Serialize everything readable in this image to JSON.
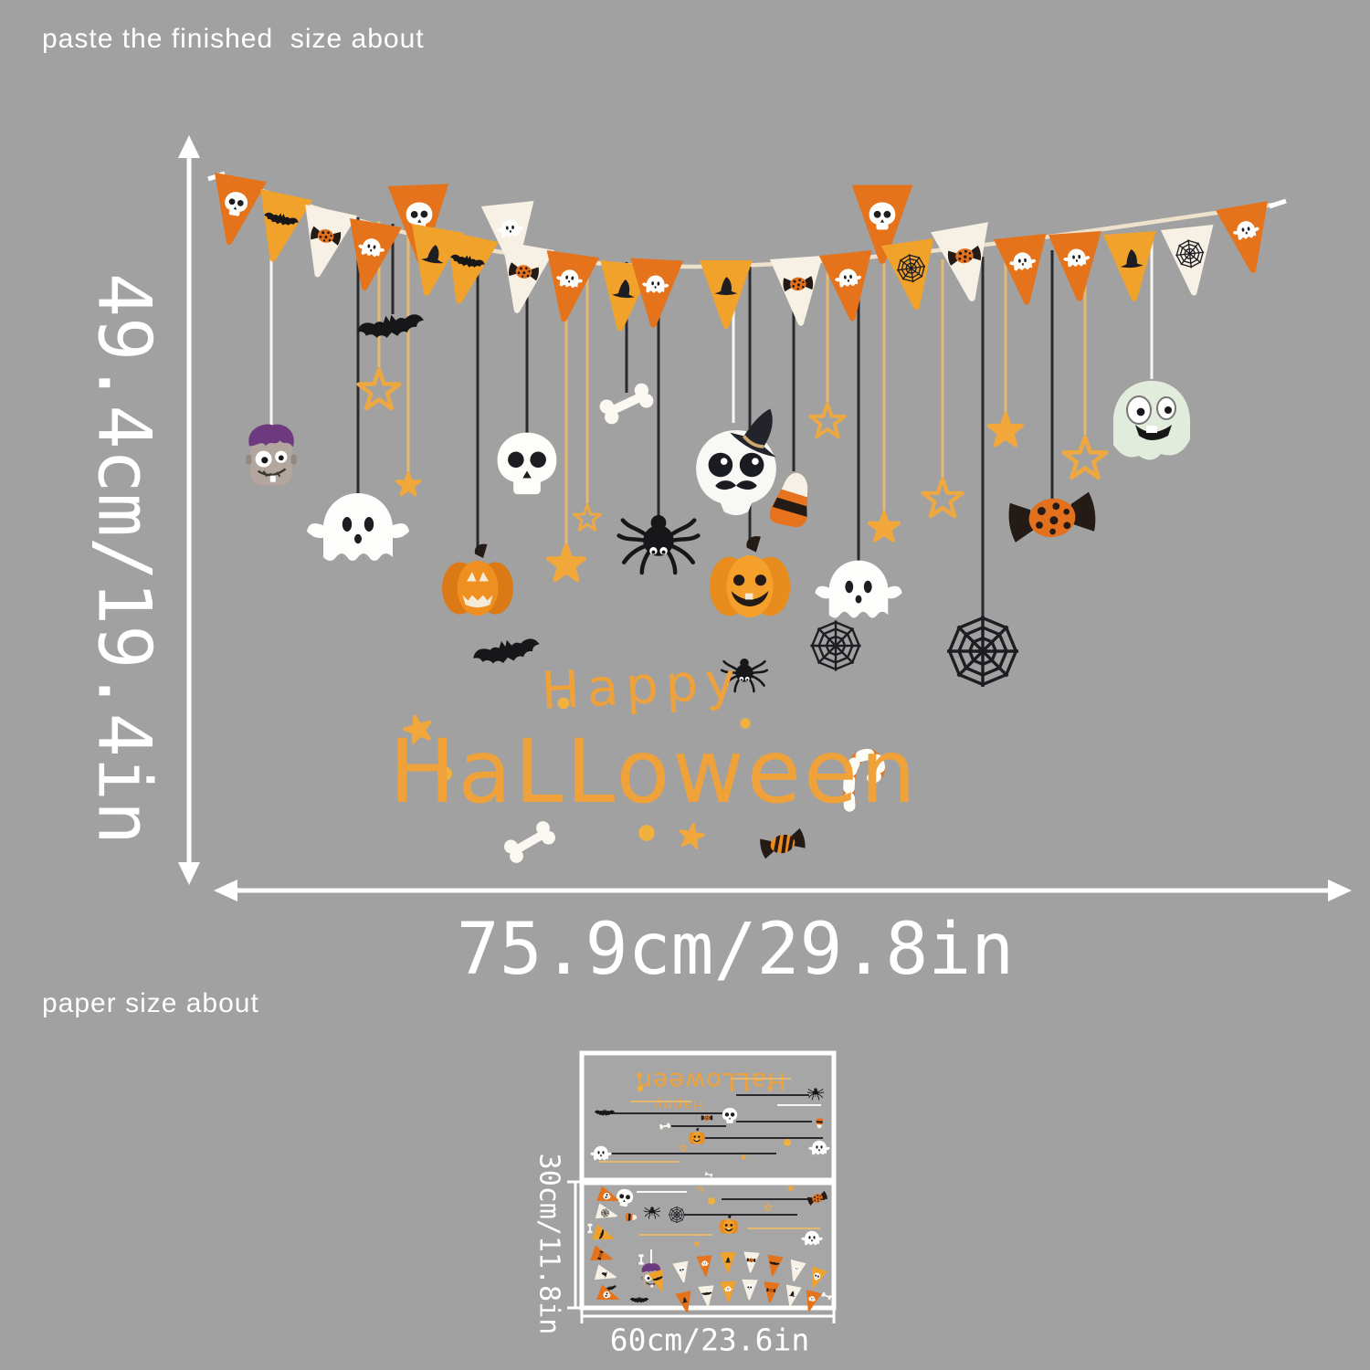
{
  "page": {
    "background_color": "#a1a1a1",
    "top_note": "paste the finished  size about",
    "bottom_note": "paper size about"
  },
  "finished_size": {
    "height_label": "49.4cm/19.4in",
    "width_label": "75.9cm/29.8in"
  },
  "paper_size": {
    "height_label": "30cm/11.8in",
    "width_label": "60cm/23.6in"
  },
  "greeting": {
    "line1": "Happy",
    "line2": "HaLLoween",
    "color": "#f0a23a"
  },
  "colors": {
    "flag_orange": "#e4731c",
    "flag_amber": "#f0a22b",
    "flag_cream": "#f6f1e4",
    "string_black": "#2a2a2e",
    "string_tan": "#e5b96f",
    "string_white": "#f7f7f5",
    "banner_cord": "#efe2cc",
    "star_gold": "#f2a73a",
    "arrow_white": "#ffffff",
    "sheet_border": "#ffffff"
  },
  "banner_flags": [
    {
      "color": "orange",
      "icon": "skull-icon"
    },
    {
      "color": "amber",
      "icon": "bat-icon"
    },
    {
      "color": "cream",
      "icon": "candy-icon"
    },
    {
      "color": "orange",
      "icon": "ghost-icon"
    },
    {
      "color": "orange",
      "icon": "skull-icon"
    },
    {
      "color": "amber",
      "icon": "witch-hat-icon"
    },
    {
      "color": "amber",
      "icon": "bat-icon"
    },
    {
      "color": "cream",
      "icon": "ghost-icon"
    },
    {
      "color": "cream",
      "icon": "candy-icon"
    },
    {
      "color": "orange",
      "icon": "ghost-icon"
    },
    {
      "color": "amber",
      "icon": "witch-hat-icon"
    },
    {
      "color": "orange",
      "icon": "ghost-icon"
    },
    {
      "color": "amber",
      "icon": "witch-hat-icon"
    },
    {
      "color": "cream",
      "icon": "candy-icon"
    },
    {
      "color": "orange",
      "icon": "ghost-icon"
    },
    {
      "color": "orange",
      "icon": "skull-icon"
    },
    {
      "color": "amber",
      "icon": "spiderweb-icon"
    },
    {
      "color": "cream",
      "icon": "candy-icon"
    },
    {
      "color": "orange",
      "icon": "ghost-icon"
    },
    {
      "color": "orange",
      "icon": "ghost-icon"
    },
    {
      "color": "amber",
      "icon": "witch-hat-icon"
    },
    {
      "color": "cream",
      "icon": "spiderweb-icon"
    },
    {
      "color": "orange",
      "icon": "ghost-icon"
    }
  ],
  "hanging_items": [
    {
      "icon": "frankenstein-icon",
      "string": "white"
    },
    {
      "icon": "bat-icon",
      "string": "black"
    },
    {
      "icon": "star-outline-icon",
      "string": "tan"
    },
    {
      "icon": "star-icon",
      "string": "tan"
    },
    {
      "icon": "ghost-icon",
      "string": "black"
    },
    {
      "icon": "skull-icon",
      "string": "black"
    },
    {
      "icon": "pumpkin-icon",
      "string": "black"
    },
    {
      "icon": "star-outline-icon",
      "string": "tan"
    },
    {
      "icon": "star-icon",
      "string": "tan"
    },
    {
      "icon": "bone-icon",
      "string": "black"
    },
    {
      "icon": "spider-icon",
      "string": "black"
    },
    {
      "icon": "skull-witch-hat-icon",
      "string": "white"
    },
    {
      "icon": "candy-corn-icon",
      "string": "black"
    },
    {
      "icon": "pumpkin-bright-icon",
      "string": "black"
    },
    {
      "icon": "ghost-icon",
      "string": "black"
    },
    {
      "icon": "star-outline-icon",
      "string": "tan"
    },
    {
      "icon": "star-icon",
      "string": "tan"
    },
    {
      "icon": "star-outline-icon",
      "string": "tan"
    },
    {
      "icon": "spiderweb-icon",
      "string": "black"
    },
    {
      "icon": "star-icon",
      "string": "tan"
    },
    {
      "icon": "star-outline-icon",
      "string": "tan"
    },
    {
      "icon": "candy-icon",
      "string": "black"
    },
    {
      "icon": "ghost-green-icon",
      "string": "white"
    }
  ],
  "scatter_items": [
    "bat-icon",
    "spider-icon",
    "spiderweb-icon",
    "star-icon",
    "dot-icon",
    "dot-icon",
    "dot-icon",
    "bone-icon",
    "dot-icon",
    "star-icon",
    "candy-striped-icon",
    "candy-cane-icon"
  ],
  "paper_sheets": {
    "top_icons": [
      "bat-icon",
      "bone-icon",
      "skull-icon",
      "candy-icon",
      "pumpkin-bright-icon",
      "spider-icon",
      "candy-corn-icon",
      "ghost-icon",
      "ghost-icon",
      "bone-icon",
      "star-icon",
      "star-outline-icon",
      "star-icon",
      "star-outline-icon",
      "dot-icon",
      "dot-icon"
    ],
    "bottom_icons": [
      "skull-icon",
      "candy-corn-icon",
      "spider-icon",
      "spiderweb-icon",
      "pumpkin-bright-icon",
      "candy-icon",
      "star-icon",
      "star-outline-icon",
      "ghost-icon",
      "frankenstein-icon",
      "bat-icon",
      "bat-icon",
      "bone-icon",
      "bone-icon",
      "bone-icon",
      "star-icon",
      "star-outline-icon",
      "dot-icon"
    ],
    "left_flags": [
      {
        "color": "orange",
        "icon": "skull-icon"
      },
      {
        "color": "cream",
        "icon": "spiderweb-icon"
      },
      {
        "color": "amber",
        "icon": "bat-icon"
      },
      {
        "color": "orange",
        "icon": "candy-icon"
      },
      {
        "color": "cream",
        "icon": "witch-hat-icon"
      },
      {
        "color": "orange",
        "icon": "skull-icon"
      }
    ],
    "arc_flags": [
      {
        "color": "amber",
        "icon": "bat-icon"
      },
      {
        "color": "cream",
        "icon": "skull-icon"
      },
      {
        "color": "orange",
        "icon": "ghost-icon"
      },
      {
        "color": "amber",
        "icon": "witch-hat-icon"
      },
      {
        "color": "cream",
        "icon": "candy-icon"
      },
      {
        "color": "orange",
        "icon": "bat-icon"
      },
      {
        "color": "cream",
        "icon": "ghost-icon"
      },
      {
        "color": "amber",
        "icon": "skull-icon"
      },
      {
        "color": "orange",
        "icon": "witch-hat-icon"
      },
      {
        "color": "cream",
        "icon": "bat-icon"
      },
      {
        "color": "amber",
        "icon": "ghost-icon"
      },
      {
        "color": "cream",
        "icon": "skull-icon"
      },
      {
        "color": "orange",
        "icon": "candy-icon"
      },
      {
        "color": "cream",
        "icon": "witch-hat-icon"
      },
      {
        "color": "orange",
        "icon": "ghost-icon"
      }
    ]
  }
}
